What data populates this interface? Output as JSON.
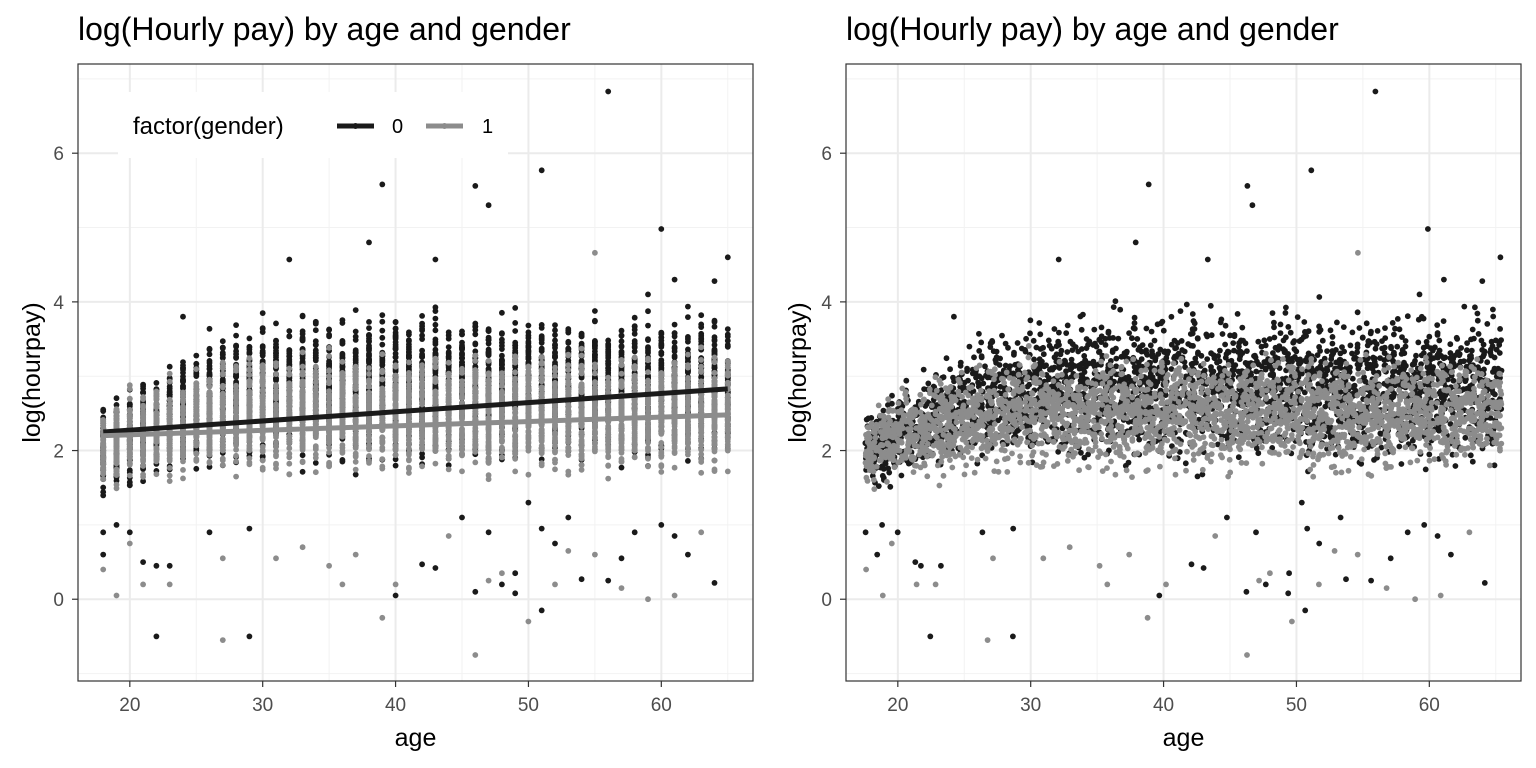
{
  "chart_data": [
    {
      "type": "scatter",
      "title": "log(Hourly pay) by age and gender",
      "xlabel": "age",
      "ylabel": "log(hourpay)",
      "xlim": [
        16.1,
        66.9
      ],
      "ylim": [
        -1.1,
        7.2
      ],
      "xticks": [
        "20",
        "30",
        "40",
        "50",
        "60"
      ],
      "yticks": [
        "0",
        "2",
        "4",
        "6"
      ],
      "x_tick_values": [
        20,
        30,
        40,
        50,
        60
      ],
      "y_tick_values": [
        0,
        2,
        4,
        6
      ],
      "grid": true,
      "x_jitter": false,
      "legend": {
        "title": "factor(gender)",
        "placement": "top-left",
        "entries": [
          {
            "label": "0",
            "color": "#1a1a1a"
          },
          {
            "label": "1",
            "color": "#8c8c8c"
          }
        ]
      },
      "series": [
        {
          "name": "0",
          "color": "#1a1a1a",
          "fit_line": {
            "x": [
              18,
              65
            ],
            "y": [
              2.25,
              2.83
            ]
          },
          "band_low": [
            1.4,
            1.4,
            1.5,
            1.6,
            1.6,
            1.7,
            1.7,
            1.8,
            1.8,
            1.8,
            1.8,
            1.8,
            1.8,
            1.8,
            1.8,
            1.8,
            1.8,
            1.8,
            1.8,
            1.8,
            1.8,
            1.8,
            1.8,
            1.8,
            1.8,
            1.8,
            1.8,
            1.8,
            1.8,
            1.8,
            1.8,
            1.8,
            1.8,
            1.8,
            1.8,
            1.8,
            1.8,
            1.8,
            1.8,
            1.8,
            1.8,
            1.8,
            1.8,
            1.8,
            1.8,
            1.8,
            1.8,
            1.8
          ],
          "band_high": [
            2.6,
            2.8,
            2.9,
            3.0,
            3.1,
            3.2,
            3.3,
            3.4,
            3.5,
            3.6,
            3.6,
            3.7,
            3.7,
            3.8,
            3.8,
            3.9,
            3.9,
            3.9,
            3.9,
            3.9,
            3.9,
            3.9,
            3.9,
            3.9,
            3.9,
            3.9,
            3.9,
            3.9,
            3.9,
            3.9,
            3.9,
            3.9,
            3.9,
            3.9,
            3.9,
            3.9,
            3.9,
            3.9,
            3.9,
            3.9,
            3.9,
            3.9,
            3.9,
            3.9,
            3.9,
            3.9,
            3.9,
            3.9
          ],
          "outliers": [
            [
              18,
              0.6
            ],
            [
              18,
              0.9
            ],
            [
              19,
              1.0
            ],
            [
              20,
              0.9
            ],
            [
              21,
              0.5
            ],
            [
              22,
              -0.5
            ],
            [
              22,
              0.45
            ],
            [
              23,
              0.45
            ],
            [
              24,
              3.8
            ],
            [
              26,
              0.9
            ],
            [
              29,
              -0.5
            ],
            [
              29,
              0.95
            ],
            [
              32,
              4.57
            ],
            [
              38,
              4.8
            ],
            [
              39,
              5.58
            ],
            [
              40,
              0.05
            ],
            [
              42,
              0.47
            ],
            [
              43,
              0.42
            ],
            [
              43,
              4.57
            ],
            [
              45,
              1.1
            ],
            [
              46,
              0.1
            ],
            [
              46,
              5.56
            ],
            [
              47,
              0.9
            ],
            [
              47,
              5.3
            ],
            [
              48,
              0.2
            ],
            [
              49,
              0.08
            ],
            [
              49,
              0.35
            ],
            [
              50,
              1.3
            ],
            [
              51,
              -0.15
            ],
            [
              51,
              0.95
            ],
            [
              51,
              5.77
            ],
            [
              52,
              0.75
            ],
            [
              53,
              1.1
            ],
            [
              54,
              0.27
            ],
            [
              56,
              0.25
            ],
            [
              56,
              6.83
            ],
            [
              57,
              0.55
            ],
            [
              58,
              0.9
            ],
            [
              59,
              4.1
            ],
            [
              60,
              1.0
            ],
            [
              60,
              4.98
            ],
            [
              61,
              0.85
            ],
            [
              61,
              4.3
            ],
            [
              62,
              0.6
            ],
            [
              64,
              0.22
            ],
            [
              64,
              4.28
            ],
            [
              65,
              4.6
            ]
          ]
        },
        {
          "name": "1",
          "color": "#8c8c8c",
          "fit_line": {
            "x": [
              18,
              65
            ],
            "y": [
              2.2,
              2.48
            ]
          },
          "band_low": [
            1.5,
            1.5,
            1.6,
            1.6,
            1.6,
            1.6,
            1.6,
            1.7,
            1.7,
            1.7,
            1.7,
            1.7,
            1.7,
            1.7,
            1.7,
            1.7,
            1.7,
            1.7,
            1.7,
            1.7,
            1.7,
            1.7,
            1.7,
            1.7,
            1.7,
            1.7,
            1.7,
            1.7,
            1.7,
            1.7,
            1.7,
            1.7,
            1.7,
            1.7,
            1.7,
            1.7,
            1.7,
            1.7,
            1.7,
            1.7,
            1.7,
            1.7,
            1.7,
            1.7,
            1.7,
            1.7,
            1.7,
            1.7
          ],
          "band_high": [
            2.5,
            2.7,
            2.8,
            2.8,
            2.9,
            3.0,
            3.0,
            3.1,
            3.1,
            3.2,
            3.2,
            3.3,
            3.3,
            3.3,
            3.3,
            3.3,
            3.3,
            3.3,
            3.3,
            3.3,
            3.3,
            3.3,
            3.3,
            3.3,
            3.3,
            3.3,
            3.3,
            3.3,
            3.3,
            3.3,
            3.3,
            3.3,
            3.3,
            3.3,
            3.3,
            3.3,
            3.3,
            3.3,
            3.3,
            3.3,
            3.3,
            3.3,
            3.3,
            3.3,
            3.3,
            3.3,
            3.3,
            3.3
          ],
          "outliers": [
            [
              18,
              0.4
            ],
            [
              19,
              0.05
            ],
            [
              20,
              0.75
            ],
            [
              21,
              0.2
            ],
            [
              23,
              0.2
            ],
            [
              27,
              -0.55
            ],
            [
              27,
              0.55
            ],
            [
              31,
              0.55
            ],
            [
              33,
              0.7
            ],
            [
              35,
              0.45
            ],
            [
              36,
              0.2
            ],
            [
              37,
              0.6
            ],
            [
              39,
              -0.25
            ],
            [
              40,
              0.2
            ],
            [
              44,
              0.85
            ],
            [
              46,
              -0.75
            ],
            [
              47,
              0.25
            ],
            [
              48,
              0.35
            ],
            [
              50,
              -0.3
            ],
            [
              52,
              0.2
            ],
            [
              53,
              0.65
            ],
            [
              55,
              4.66
            ],
            [
              55,
              0.6
            ],
            [
              57,
              0.15
            ],
            [
              59,
              0.0
            ],
            [
              61,
              0.05
            ],
            [
              63,
              0.9
            ]
          ]
        }
      ]
    },
    {
      "type": "scatter",
      "title": "log(Hourly pay) by age and gender",
      "xlabel": "age",
      "ylabel": "log(hourpay)",
      "xlim": [
        16.1,
        66.9
      ],
      "ylim": [
        -1.1,
        7.2
      ],
      "xticks": [
        "20",
        "30",
        "40",
        "50",
        "60"
      ],
      "yticks": [
        "0",
        "2",
        "4",
        "6"
      ],
      "x_tick_values": [
        20,
        30,
        40,
        50,
        60
      ],
      "y_tick_values": [
        0,
        2,
        4,
        6
      ],
      "grid": true,
      "x_jitter": true,
      "series_ref": "same as first panel (age jittered within year)"
    }
  ]
}
